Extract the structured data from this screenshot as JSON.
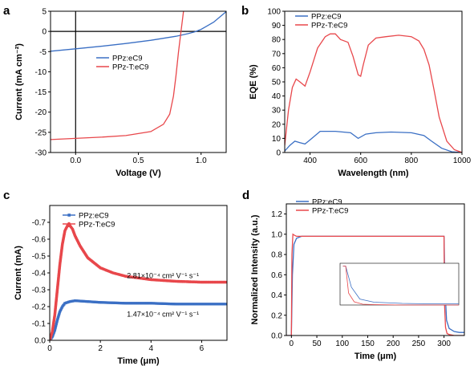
{
  "colors": {
    "blue": "#3a6fc4",
    "red": "#e8474b"
  },
  "chart_data": [
    {
      "panel": "a",
      "type": "line",
      "xlabel": "Voltage (V)",
      "ylabel": "Current (mA cm⁻²)",
      "xlim": [
        -0.2,
        1.2
      ],
      "ylim": [
        -30,
        5
      ],
      "xticks": [
        "0.0",
        "0.5",
        "1.0"
      ],
      "xtick_values": [
        0,
        0.5,
        1.0
      ],
      "yticks": [
        "5",
        "0",
        "-5",
        "-10",
        "-15",
        "-20",
        "-25",
        "-30"
      ],
      "ytick_values": [
        5,
        0,
        -5,
        -10,
        -15,
        -20,
        -25,
        -30
      ],
      "legend_position": "center-right",
      "series": [
        {
          "name": "PPz:eC9",
          "color": "#3a6fc4",
          "x": [
            -0.2,
            0,
            0.2,
            0.4,
            0.6,
            0.8,
            0.9,
            0.95,
            1.0,
            1.1,
            1.2
          ],
          "y": [
            -4.9,
            -4.3,
            -3.7,
            -3.0,
            -2.2,
            -1.2,
            -0.5,
            -0.1,
            0.5,
            2.3,
            4.9
          ]
        },
        {
          "name": "PPz-T:eC9",
          "color": "#e8474b",
          "x": [
            -0.2,
            0,
            0.2,
            0.4,
            0.6,
            0.7,
            0.75,
            0.78,
            0.8,
            0.82,
            0.84,
            0.86
          ],
          "y": [
            -26.8,
            -26.5,
            -26.2,
            -25.8,
            -24.8,
            -23.0,
            -20.5,
            -16.0,
            -11.0,
            -5.0,
            0.0,
            5.0
          ]
        }
      ]
    },
    {
      "panel": "b",
      "type": "line",
      "xlabel": "Wavelength (nm)",
      "ylabel": "EQE (%)",
      "xlim": [
        300,
        1000
      ],
      "ylim": [
        0,
        100
      ],
      "xticks": [
        "400",
        "600",
        "800",
        "1000"
      ],
      "xtick_values": [
        400,
        600,
        800,
        1000
      ],
      "yticks": [
        "0",
        "10",
        "20",
        "30",
        "40",
        "50",
        "60",
        "70",
        "80",
        "90",
        "100"
      ],
      "ytick_values": [
        0,
        10,
        20,
        30,
        40,
        50,
        60,
        70,
        80,
        90,
        100
      ],
      "legend_position": "top-left",
      "series": [
        {
          "name": "PPz:eC9",
          "color": "#3a6fc4",
          "x": [
            300,
            320,
            340,
            360,
            380,
            400,
            440,
            500,
            560,
            590,
            620,
            660,
            720,
            800,
            850,
            880,
            920,
            960,
            1000
          ],
          "y": [
            1,
            5,
            8,
            7,
            6,
            9,
            15,
            15,
            14,
            10,
            13,
            14,
            14.5,
            14,
            12,
            8,
            3,
            0.5,
            0
          ]
        },
        {
          "name": "PPz-T:eC9",
          "color": "#e8474b",
          "x": [
            300,
            315,
            330,
            345,
            360,
            380,
            400,
            430,
            460,
            480,
            500,
            520,
            550,
            570,
            590,
            600,
            610,
            630,
            660,
            700,
            750,
            800,
            830,
            850,
            870,
            890,
            910,
            940,
            970,
            1000
          ],
          "y": [
            5,
            30,
            46,
            52,
            50,
            47,
            57,
            74,
            82,
            84,
            84,
            80,
            78,
            68,
            55,
            54,
            62,
            76,
            81,
            82,
            83,
            82,
            79,
            73,
            62,
            44,
            25,
            8,
            2,
            0
          ]
        }
      ]
    },
    {
      "panel": "c",
      "type": "scatter",
      "xlabel": "Time (μm)",
      "ylabel": "Current (mA)",
      "xlim": [
        0,
        7
      ],
      "ylim": [
        0,
        -0.8
      ],
      "xticks": [
        "0",
        "2",
        "4",
        "6"
      ],
      "xtick_values": [
        0,
        2,
        4,
        6
      ],
      "yticks": [
        "0.0",
        "-0.1",
        "-0.2",
        "-0.3",
        "-0.4",
        "-0.5",
        "-0.6",
        "-0.7"
      ],
      "ytick_values": [
        0,
        -0.1,
        -0.2,
        -0.3,
        -0.4,
        -0.5,
        -0.6,
        -0.7
      ],
      "legend_position": "top-left",
      "annotations": [
        {
          "text": "2.81×10⁻⁴ cm² V⁻¹ s⁻¹",
          "x": 3.05,
          "y": -0.37
        },
        {
          "text": "1.47×10⁻⁴ cm² V⁻¹ s⁻¹",
          "x": 3.05,
          "y": -0.14
        }
      ],
      "series": [
        {
          "name": "PPz:eC9",
          "color": "#3a6fc4",
          "x": [
            0,
            0.1,
            0.2,
            0.3,
            0.4,
            0.5,
            0.6,
            0.8,
            1.0,
            1.5,
            2,
            3,
            4,
            5,
            6,
            7
          ],
          "y": [
            0,
            -0.02,
            -0.06,
            -0.12,
            -0.17,
            -0.2,
            -0.22,
            -0.23,
            -0.235,
            -0.23,
            -0.225,
            -0.22,
            -0.22,
            -0.215,
            -0.215,
            -0.215
          ]
        },
        {
          "name": "PPz-T:eC9",
          "color": "#e8474b",
          "x": [
            0,
            0.1,
            0.2,
            0.3,
            0.4,
            0.5,
            0.6,
            0.7,
            0.8,
            0.9,
            1.0,
            1.2,
            1.5,
            2,
            2.5,
            3,
            4,
            5,
            6,
            7
          ],
          "y": [
            0,
            -0.05,
            -0.15,
            -0.3,
            -0.45,
            -0.57,
            -0.65,
            -0.68,
            -0.68,
            -0.66,
            -0.62,
            -0.56,
            -0.49,
            -0.43,
            -0.4,
            -0.38,
            -0.36,
            -0.35,
            -0.345,
            -0.345
          ]
        }
      ]
    },
    {
      "panel": "d",
      "type": "line",
      "xlabel": "Time (μm)",
      "ylabel": "Normalized Intensity (a.u.)",
      "xlim": [
        -10,
        340
      ],
      "ylim": [
        0,
        1.3
      ],
      "xticks": [
        "0",
        "50",
        "100",
        "150",
        "200",
        "250",
        "300"
      ],
      "xtick_values": [
        0,
        50,
        100,
        150,
        200,
        250,
        300
      ],
      "yticks": [
        "0.0",
        "0.2",
        "0.4",
        "0.6",
        "0.8",
        "1.0",
        "1.2"
      ],
      "ytick_values": [
        0,
        0.2,
        0.4,
        0.6,
        0.8,
        1.0,
        1.2
      ],
      "legend_position": "top-left",
      "series": [
        {
          "name": "PPz:eC9",
          "color": "#3a6fc4",
          "x": [
            -10,
            0,
            2,
            5,
            10,
            20,
            50,
            100,
            200,
            299,
            300,
            302,
            305,
            310,
            320,
            330,
            340
          ],
          "y": [
            0,
            0,
            0.6,
            0.9,
            0.96,
            0.98,
            0.98,
            0.98,
            0.98,
            0.98,
            0.98,
            0.45,
            0.15,
            0.07,
            0.04,
            0.03,
            0.03
          ]
        },
        {
          "name": "PPz-T:eC9",
          "color": "#e8474b",
          "x": [
            -10,
            0,
            1,
            3,
            6,
            10,
            20,
            50,
            100,
            200,
            299,
            300,
            301,
            303,
            306,
            310,
            320,
            340
          ],
          "y": [
            0,
            0,
            0.8,
            1.0,
            0.99,
            0.98,
            0.98,
            0.98,
            0.98,
            0.98,
            0.98,
            0.98,
            0.3,
            0.08,
            0.02,
            0.01,
            0.0,
            0.0
          ]
        }
      ]
    }
  ]
}
